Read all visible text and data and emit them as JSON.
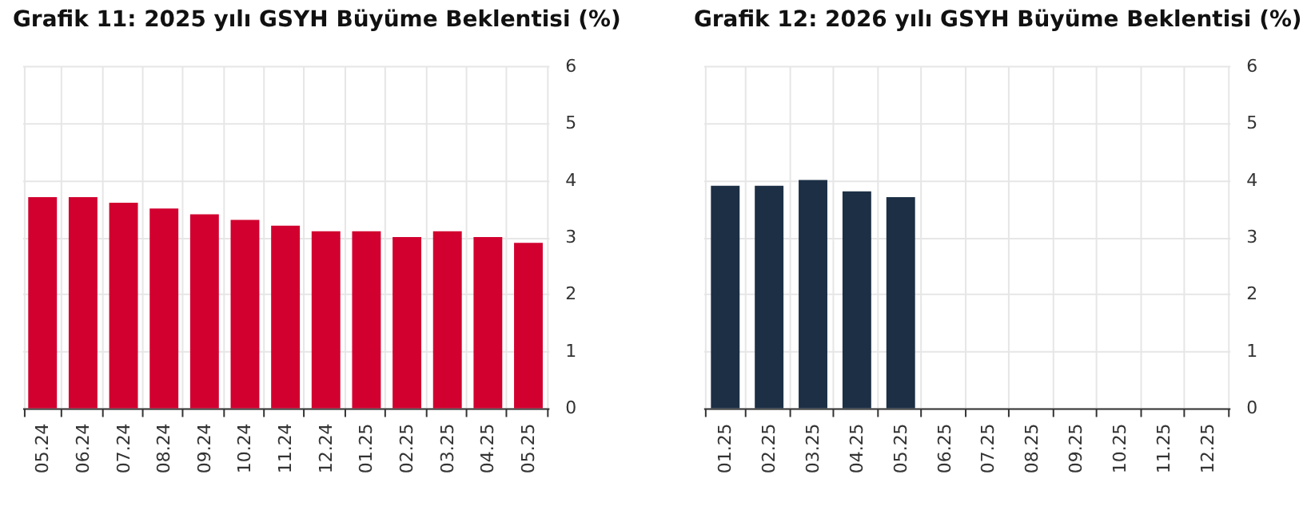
{
  "chart_data": [
    {
      "type": "bar",
      "title": "Grafik 11: 2025 yılı GSYH Büyüme Beklentisi (%)",
      "categories": [
        "05.24",
        "06.24",
        "07.24",
        "08.24",
        "09.24",
        "10.24",
        "11.24",
        "12.24",
        "01.25",
        "02.25",
        "03.25",
        "04.25",
        "05.25"
      ],
      "values": [
        3.7,
        3.7,
        3.6,
        3.5,
        3.4,
        3.3,
        3.2,
        3.1,
        3.1,
        3.0,
        3.1,
        3.0,
        2.9
      ],
      "color": "#d1002f",
      "ylim": [
        0,
        6
      ],
      "yticks": [
        0,
        1,
        2,
        3,
        4,
        5,
        6
      ],
      "grid": true
    },
    {
      "type": "bar",
      "title": "Grafik 12: 2026 yılı GSYH Büyüme Beklentisi (%)",
      "categories": [
        "01.25",
        "02.25",
        "03.25",
        "04.25",
        "05.25",
        "06.25",
        "07.25",
        "08.25",
        "09.25",
        "10.25",
        "11.25",
        "12.25"
      ],
      "values": [
        3.9,
        3.9,
        4.0,
        3.8,
        3.7,
        null,
        null,
        null,
        null,
        null,
        null,
        null
      ],
      "color": "#1c2f45",
      "ylim": [
        0,
        6
      ],
      "yticks": [
        0,
        1,
        2,
        3,
        4,
        5,
        6
      ],
      "grid": true
    }
  ]
}
